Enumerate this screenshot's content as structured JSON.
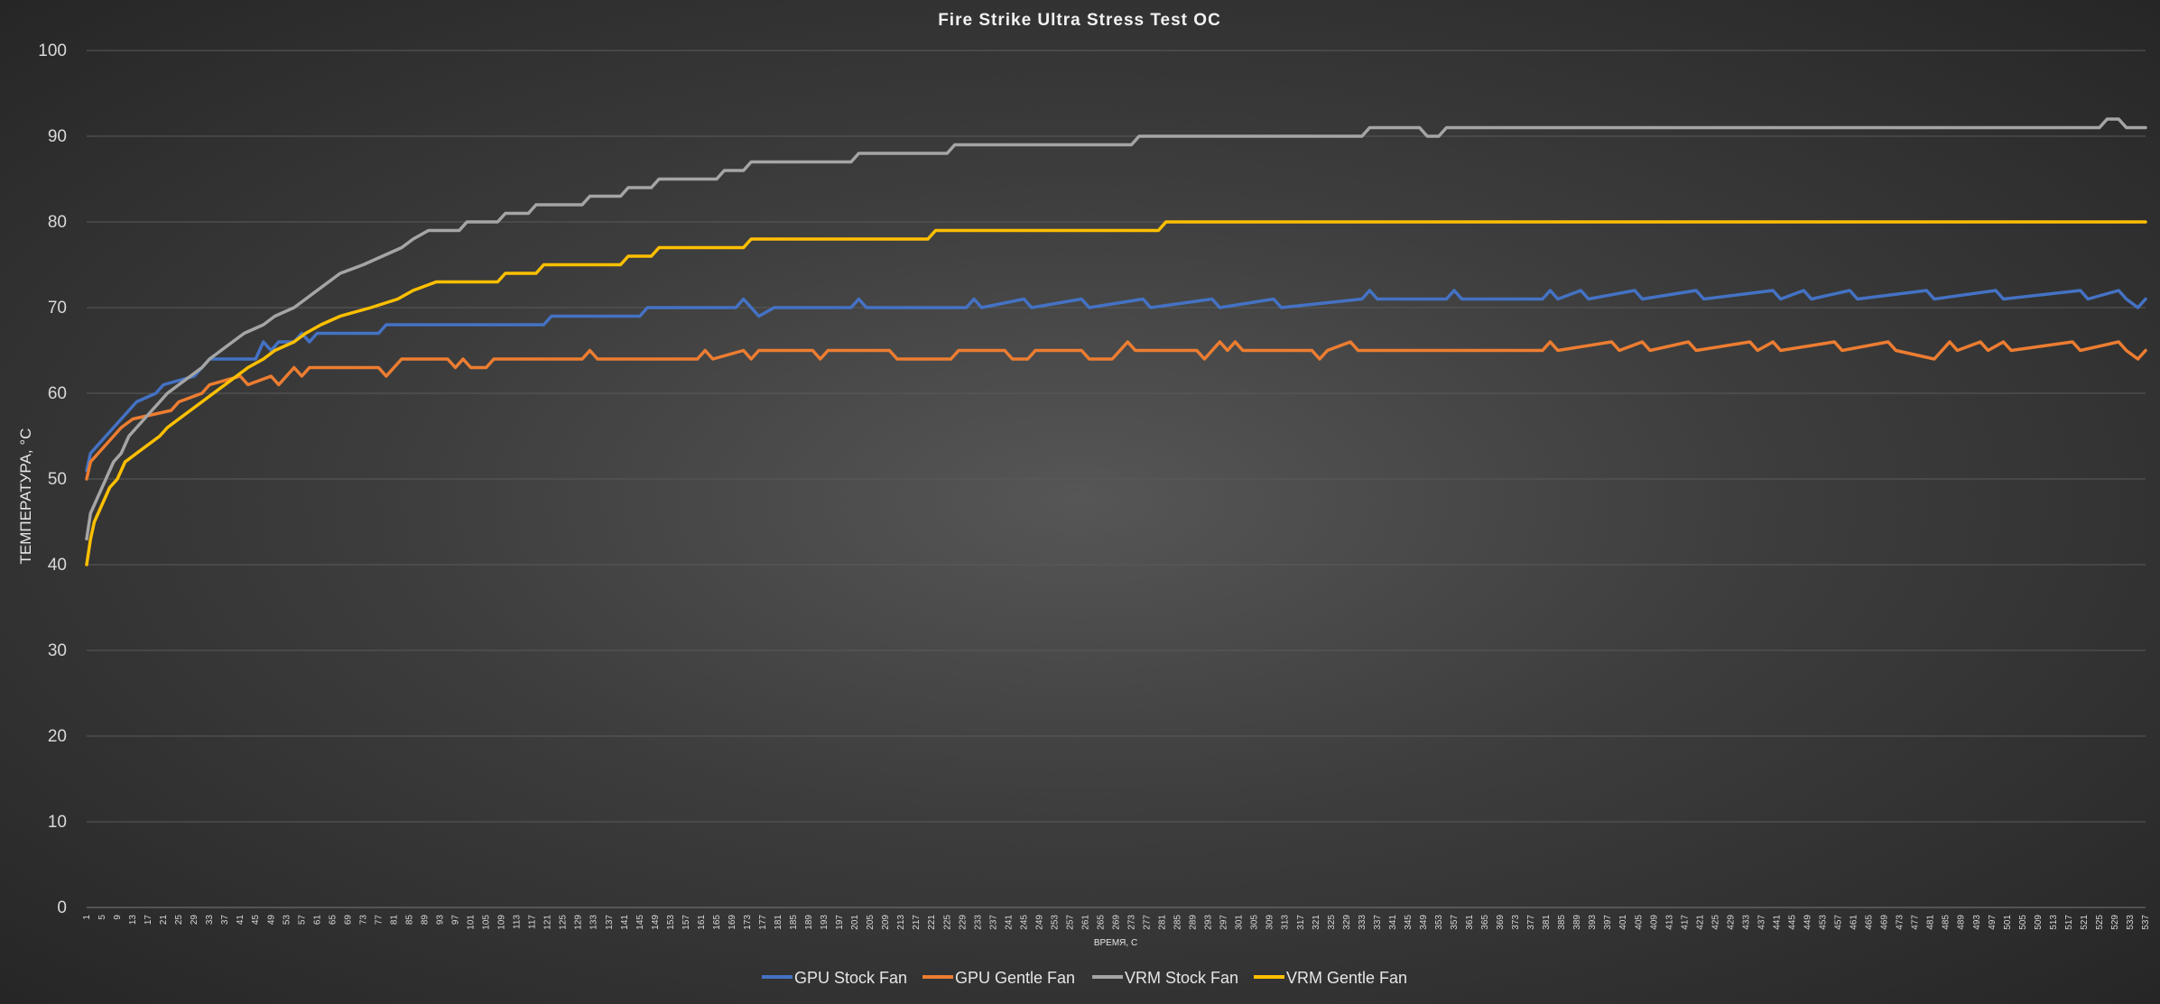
{
  "chart_data": {
    "type": "line",
    "title": "Fire Strike Ultra Stress Test OC",
    "xlabel": "ВРЕМЯ, С",
    "ylabel": "ТЕМПЕРАТУРА, °С",
    "ylim": [
      0,
      100
    ],
    "yticks": [
      0,
      10,
      20,
      30,
      40,
      50,
      60,
      70,
      80,
      90,
      100
    ],
    "xlim": [
      1,
      537
    ],
    "xticks": [
      1,
      5,
      9,
      13,
      17,
      21,
      25,
      29,
      33,
      37,
      41,
      45,
      49,
      53,
      57,
      61,
      65,
      69,
      73,
      77,
      81,
      85,
      89,
      93,
      97,
      101,
      105,
      109,
      113,
      117,
      121,
      125,
      129,
      133,
      137,
      141,
      145,
      149,
      153,
      157,
      161,
      165,
      169,
      173,
      177,
      181,
      185,
      189,
      193,
      197,
      201,
      205,
      209,
      213,
      217,
      221,
      225,
      229,
      233,
      237,
      241,
      245,
      249,
      253,
      257,
      261,
      265,
      269,
      273,
      277,
      281,
      285,
      289,
      293,
      297,
      301,
      305,
      309,
      313,
      317,
      321,
      325,
      329,
      333,
      337,
      341,
      345,
      349,
      353,
      357,
      361,
      365,
      369,
      373,
      377,
      381,
      385,
      389,
      393,
      397,
      401,
      405,
      409,
      413,
      417,
      421,
      425,
      429,
      433,
      437,
      441,
      445,
      449,
      453,
      457,
      461,
      465,
      469,
      473,
      477,
      481,
      485,
      489,
      493,
      497,
      501,
      505,
      509,
      513,
      517,
      521,
      525,
      529,
      533,
      537
    ],
    "grid": true,
    "legend_position": "bottom",
    "series": [
      {
        "name": "GPU Stock Fan",
        "color": "#4472c4",
        "points": [
          [
            1,
            51
          ],
          [
            2,
            53
          ],
          [
            4,
            54
          ],
          [
            6,
            55
          ],
          [
            8,
            56
          ],
          [
            10,
            57
          ],
          [
            12,
            58
          ],
          [
            14,
            59
          ],
          [
            19,
            60
          ],
          [
            21,
            61
          ],
          [
            29,
            62
          ],
          [
            31,
            63
          ],
          [
            33,
            64
          ],
          [
            45,
            64
          ],
          [
            47,
            66
          ],
          [
            49,
            65
          ],
          [
            51,
            66
          ],
          [
            55,
            66
          ],
          [
            57,
            67
          ],
          [
            59,
            66
          ],
          [
            61,
            67
          ],
          [
            77,
            67
          ],
          [
            79,
            68
          ],
          [
            120,
            68
          ],
          [
            122,
            69
          ],
          [
            145,
            69
          ],
          [
            147,
            70
          ],
          [
            170,
            70
          ],
          [
            172,
            71
          ],
          [
            174,
            70
          ],
          [
            176,
            69
          ],
          [
            180,
            70
          ],
          [
            200,
            70
          ],
          [
            202,
            71
          ],
          [
            204,
            70
          ],
          [
            230,
            70
          ],
          [
            232,
            71
          ],
          [
            234,
            70
          ],
          [
            245,
            71
          ],
          [
            247,
            70
          ],
          [
            260,
            71
          ],
          [
            262,
            70
          ],
          [
            276,
            71
          ],
          [
            278,
            70
          ],
          [
            294,
            71
          ],
          [
            296,
            70
          ],
          [
            310,
            71
          ],
          [
            312,
            70
          ],
          [
            333,
            71
          ],
          [
            335,
            72
          ],
          [
            337,
            71
          ],
          [
            355,
            71
          ],
          [
            357,
            72
          ],
          [
            359,
            71
          ],
          [
            380,
            71
          ],
          [
            382,
            72
          ],
          [
            384,
            71
          ],
          [
            390,
            72
          ],
          [
            392,
            71
          ],
          [
            404,
            72
          ],
          [
            406,
            71
          ],
          [
            420,
            72
          ],
          [
            422,
            71
          ],
          [
            440,
            72
          ],
          [
            442,
            71
          ],
          [
            448,
            72
          ],
          [
            450,
            71
          ],
          [
            460,
            72
          ],
          [
            462,
            71
          ],
          [
            480,
            72
          ],
          [
            482,
            71
          ],
          [
            498,
            72
          ],
          [
            500,
            71
          ],
          [
            520,
            72
          ],
          [
            522,
            71
          ],
          [
            530,
            72
          ],
          [
            532,
            71
          ],
          [
            535,
            70
          ],
          [
            537,
            71
          ]
        ]
      },
      {
        "name": "GPU Gentle Fan",
        "color": "#ed7d31",
        "points": [
          [
            1,
            50
          ],
          [
            2,
            52
          ],
          [
            4,
            53
          ],
          [
            6,
            54
          ],
          [
            8,
            55
          ],
          [
            10,
            56
          ],
          [
            13,
            57
          ],
          [
            23,
            58
          ],
          [
            25,
            59
          ],
          [
            31,
            60
          ],
          [
            33,
            61
          ],
          [
            41,
            62
          ],
          [
            43,
            61
          ],
          [
            49,
            62
          ],
          [
            51,
            61
          ],
          [
            53,
            62
          ],
          [
            55,
            63
          ],
          [
            57,
            62
          ],
          [
            59,
            63
          ],
          [
            77,
            63
          ],
          [
            79,
            62
          ],
          [
            81,
            63
          ],
          [
            83,
            64
          ],
          [
            95,
            64
          ],
          [
            97,
            63
          ],
          [
            99,
            64
          ],
          [
            101,
            63
          ],
          [
            105,
            63
          ],
          [
            107,
            64
          ],
          [
            130,
            64
          ],
          [
            132,
            65
          ],
          [
            134,
            64
          ],
          [
            160,
            64
          ],
          [
            162,
            65
          ],
          [
            164,
            64
          ],
          [
            172,
            65
          ],
          [
            174,
            64
          ],
          [
            176,
            65
          ],
          [
            190,
            65
          ],
          [
            192,
            64
          ],
          [
            194,
            65
          ],
          [
            210,
            65
          ],
          [
            212,
            64
          ],
          [
            226,
            64
          ],
          [
            228,
            65
          ],
          [
            240,
            65
          ],
          [
            242,
            64
          ],
          [
            246,
            64
          ],
          [
            248,
            65
          ],
          [
            260,
            65
          ],
          [
            262,
            64
          ],
          [
            268,
            64
          ],
          [
            270,
            65
          ],
          [
            272,
            66
          ],
          [
            274,
            65
          ],
          [
            290,
            65
          ],
          [
            292,
            64
          ],
          [
            294,
            65
          ],
          [
            296,
            66
          ],
          [
            298,
            65
          ],
          [
            300,
            66
          ],
          [
            302,
            65
          ],
          [
            320,
            65
          ],
          [
            322,
            64
          ],
          [
            324,
            65
          ],
          [
            330,
            66
          ],
          [
            332,
            65
          ],
          [
            380,
            65
          ],
          [
            382,
            66
          ],
          [
            384,
            65
          ],
          [
            398,
            66
          ],
          [
            400,
            65
          ],
          [
            406,
            66
          ],
          [
            408,
            65
          ],
          [
            418,
            66
          ],
          [
            420,
            65
          ],
          [
            434,
            66
          ],
          [
            436,
            65
          ],
          [
            440,
            66
          ],
          [
            442,
            65
          ],
          [
            456,
            66
          ],
          [
            458,
            65
          ],
          [
            470,
            66
          ],
          [
            472,
            65
          ],
          [
            482,
            64
          ],
          [
            484,
            65
          ],
          [
            486,
            66
          ],
          [
            488,
            65
          ],
          [
            494,
            66
          ],
          [
            496,
            65
          ],
          [
            500,
            66
          ],
          [
            502,
            65
          ],
          [
            518,
            66
          ],
          [
            520,
            65
          ],
          [
            530,
            66
          ],
          [
            532,
            65
          ],
          [
            535,
            64
          ],
          [
            537,
            65
          ]
        ]
      },
      {
        "name": "VRM Stock Fan",
        "color": "#a5a5a5",
        "points": [
          [
            1,
            43
          ],
          [
            2,
            46
          ],
          [
            4,
            48
          ],
          [
            6,
            50
          ],
          [
            8,
            52
          ],
          [
            10,
            53
          ],
          [
            12,
            55
          ],
          [
            14,
            56
          ],
          [
            16,
            57
          ],
          [
            18,
            58
          ],
          [
            20,
            59
          ],
          [
            22,
            60
          ],
          [
            25,
            61
          ],
          [
            28,
            62
          ],
          [
            31,
            63
          ],
          [
            33,
            64
          ],
          [
            36,
            65
          ],
          [
            39,
            66
          ],
          [
            42,
            67
          ],
          [
            47,
            68
          ],
          [
            50,
            69
          ],
          [
            55,
            70
          ],
          [
            58,
            71
          ],
          [
            61,
            72
          ],
          [
            64,
            73
          ],
          [
            67,
            74
          ],
          [
            73,
            75
          ],
          [
            78,
            76
          ],
          [
            83,
            77
          ],
          [
            86,
            78
          ],
          [
            90,
            79
          ],
          [
            98,
            79
          ],
          [
            100,
            80
          ],
          [
            108,
            80
          ],
          [
            110,
            81
          ],
          [
            116,
            81
          ],
          [
            118,
            82
          ],
          [
            130,
            82
          ],
          [
            132,
            83
          ],
          [
            140,
            83
          ],
          [
            142,
            84
          ],
          [
            148,
            84
          ],
          [
            150,
            85
          ],
          [
            165,
            85
          ],
          [
            167,
            86
          ],
          [
            172,
            86
          ],
          [
            174,
            87
          ],
          [
            200,
            87
          ],
          [
            202,
            88
          ],
          [
            225,
            88
          ],
          [
            227,
            89
          ],
          [
            273,
            89
          ],
          [
            275,
            90
          ],
          [
            333,
            90
          ],
          [
            335,
            91
          ],
          [
            348,
            91
          ],
          [
            350,
            90
          ],
          [
            353,
            90
          ],
          [
            355,
            91
          ],
          [
            525,
            91
          ],
          [
            527,
            92
          ],
          [
            530,
            92
          ],
          [
            532,
            91
          ],
          [
            537,
            91
          ]
        ]
      },
      {
        "name": "VRM Gentle Fan",
        "color": "#ffc000",
        "points": [
          [
            1,
            40
          ],
          [
            2,
            43
          ],
          [
            3,
            45
          ],
          [
            5,
            47
          ],
          [
            7,
            49
          ],
          [
            9,
            50
          ],
          [
            11,
            52
          ],
          [
            14,
            53
          ],
          [
            17,
            54
          ],
          [
            20,
            55
          ],
          [
            22,
            56
          ],
          [
            25,
            57
          ],
          [
            28,
            58
          ],
          [
            31,
            59
          ],
          [
            34,
            60
          ],
          [
            37,
            61
          ],
          [
            40,
            62
          ],
          [
            43,
            63
          ],
          [
            47,
            64
          ],
          [
            50,
            65
          ],
          [
            55,
            66
          ],
          [
            58,
            67
          ],
          [
            62,
            68
          ],
          [
            67,
            69
          ],
          [
            75,
            70
          ],
          [
            82,
            71
          ],
          [
            86,
            72
          ],
          [
            92,
            73
          ],
          [
            108,
            73
          ],
          [
            110,
            74
          ],
          [
            118,
            74
          ],
          [
            120,
            75
          ],
          [
            140,
            75
          ],
          [
            142,
            76
          ],
          [
            148,
            76
          ],
          [
            150,
            77
          ],
          [
            172,
            77
          ],
          [
            174,
            78
          ],
          [
            220,
            78
          ],
          [
            222,
            79
          ],
          [
            280,
            79
          ],
          [
            282,
            80
          ],
          [
            537,
            80
          ]
        ]
      }
    ]
  }
}
